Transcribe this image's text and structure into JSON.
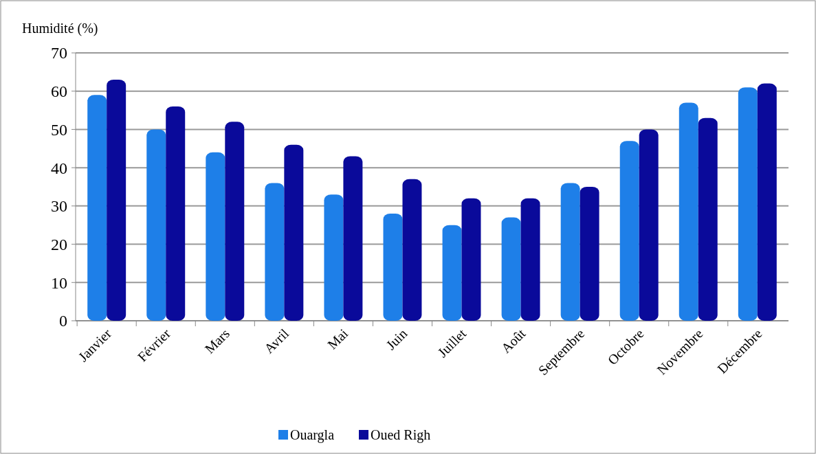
{
  "chart_data": {
    "type": "bar",
    "ylabel": "Humidité (%)",
    "categories": [
      "Janvier",
      "Février",
      "Mars",
      "Avril",
      "Mai",
      "Juin",
      "Juillet",
      "Août",
      "Septembre",
      "Octobre",
      "Novembre",
      "Décembre"
    ],
    "series": [
      {
        "name": "Ouargla",
        "color": "#1e7fe8",
        "values": [
          59,
          50,
          44,
          36,
          33,
          28,
          25,
          27,
          36,
          47,
          57,
          61
        ]
      },
      {
        "name": "Oued Righ",
        "color": "#0a0a9a",
        "values": [
          63,
          56,
          52,
          46,
          43,
          37,
          32,
          32,
          35,
          50,
          53,
          62
        ]
      }
    ],
    "ylim": [
      0,
      70
    ],
    "yticks": [
      0,
      10,
      20,
      30,
      40,
      50,
      60,
      70
    ],
    "grid": "y",
    "legend": "bottom"
  }
}
